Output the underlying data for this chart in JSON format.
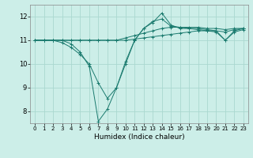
{
  "xlabel": "Humidex (Indice chaleur)",
  "background_color": "#cceee8",
  "grid_color": "#aad8d0",
  "line_color": "#1a7a6e",
  "xlim": [
    -0.5,
    23.5
  ],
  "ylim": [
    7.5,
    12.5
  ],
  "yticks": [
    8,
    9,
    10,
    11,
    12
  ],
  "xticks": [
    0,
    1,
    2,
    3,
    4,
    5,
    6,
    7,
    8,
    9,
    10,
    11,
    12,
    13,
    14,
    15,
    16,
    17,
    18,
    19,
    20,
    21,
    22,
    23
  ],
  "series": [
    [
      11.0,
      11.0,
      11.0,
      11.0,
      10.85,
      10.5,
      9.9,
      7.58,
      8.1,
      9.0,
      10.1,
      11.0,
      11.5,
      11.75,
      12.15,
      11.65,
      11.5,
      11.5,
      11.5,
      11.45,
      11.4,
      11.0,
      11.35,
      11.45
    ],
    [
      11.0,
      11.0,
      11.0,
      11.0,
      11.0,
      11.0,
      11.0,
      11.0,
      11.0,
      11.0,
      11.1,
      11.2,
      11.3,
      11.4,
      11.5,
      11.55,
      11.55,
      11.55,
      11.55,
      11.5,
      11.5,
      11.45,
      11.5,
      11.5
    ],
    [
      11.0,
      11.0,
      11.0,
      11.0,
      11.0,
      11.0,
      11.0,
      11.0,
      11.0,
      11.0,
      11.0,
      11.05,
      11.1,
      11.15,
      11.2,
      11.25,
      11.3,
      11.35,
      11.4,
      11.4,
      11.4,
      11.35,
      11.45,
      11.5
    ],
    [
      11.0,
      11.0,
      11.0,
      10.9,
      10.7,
      10.4,
      10.0,
      9.2,
      8.55,
      9.0,
      10.0,
      11.0,
      11.5,
      11.8,
      11.9,
      11.6,
      11.55,
      11.5,
      11.45,
      11.4,
      11.35,
      11.0,
      11.4,
      11.5
    ]
  ]
}
